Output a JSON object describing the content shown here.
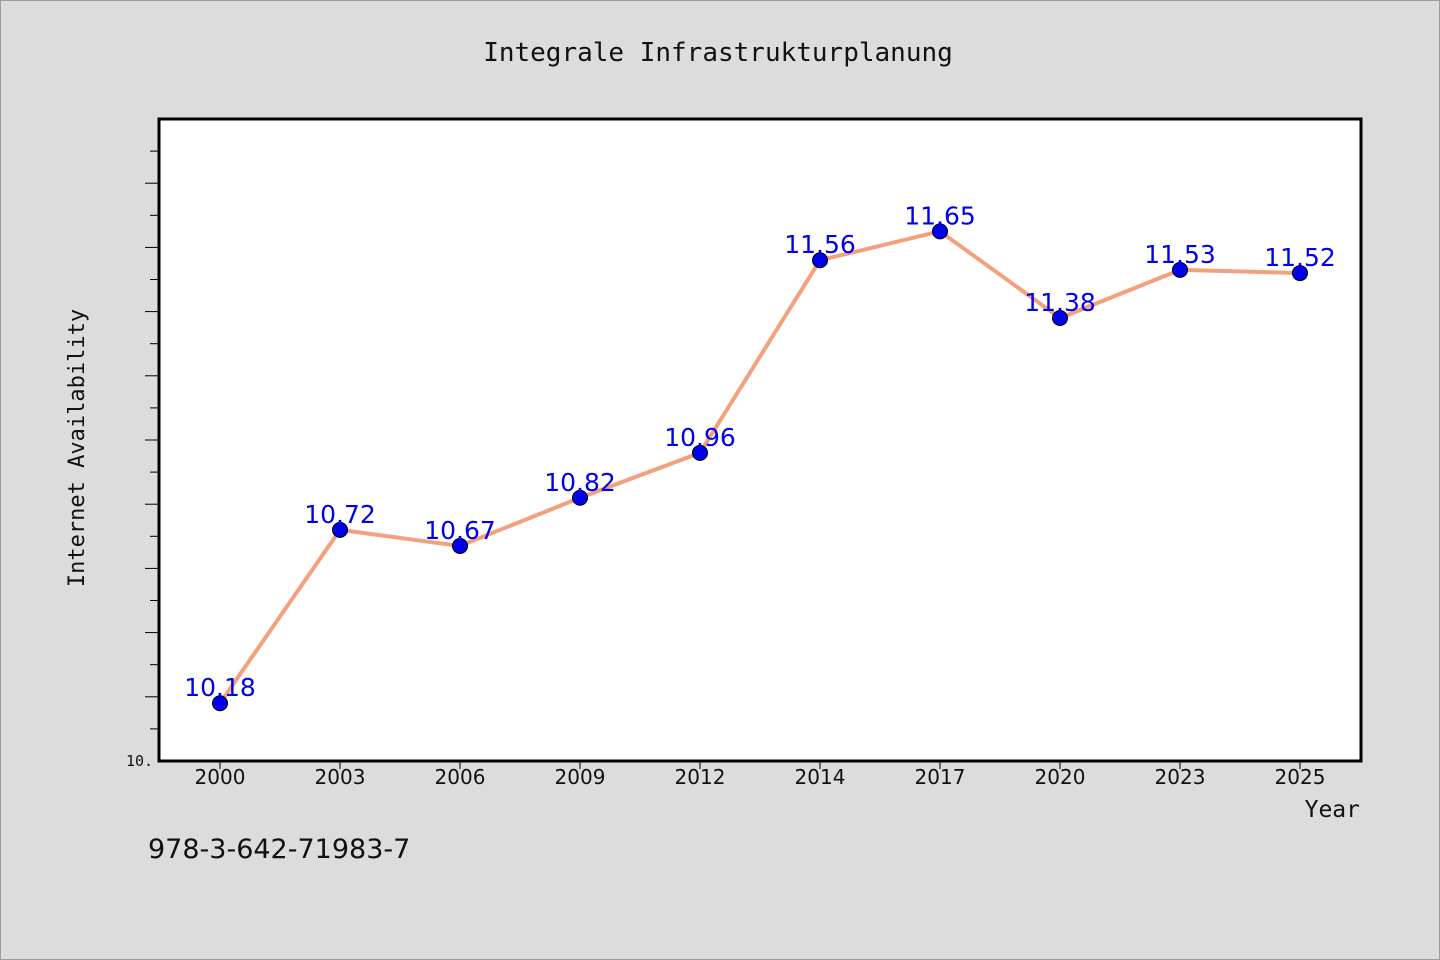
{
  "code": "978-3-642-71983-7",
  "chart_data": {
    "type": "line",
    "title": "Integrale Infrastrukturplanung",
    "xlabel": "Year",
    "ylabel": "Internet Availability",
    "categories": [
      "2000",
      "2003",
      "2006",
      "2009",
      "2012",
      "2014",
      "2017",
      "2020",
      "2023",
      "2025"
    ],
    "values": [
      10.18,
      10.72,
      10.67,
      10.82,
      10.96,
      11.56,
      11.65,
      11.38,
      11.53,
      11.52
    ],
    "data_labels": [
      "10.18",
      "10.72",
      "10.67",
      "10.82",
      "10.96",
      "11.56",
      "11.65",
      "11.38",
      "11.53",
      "11.52"
    ],
    "ylim": [
      10.0,
      12.0
    ],
    "y_tick_label": "10.",
    "minor_tick_step": 0.1,
    "grid": false,
    "colors": {
      "line": "#f4a07e",
      "marker": "#0000ee",
      "data_label": "#0000ee",
      "plot_background": "#ffffff",
      "figure_background": "#dcdcdc"
    }
  }
}
